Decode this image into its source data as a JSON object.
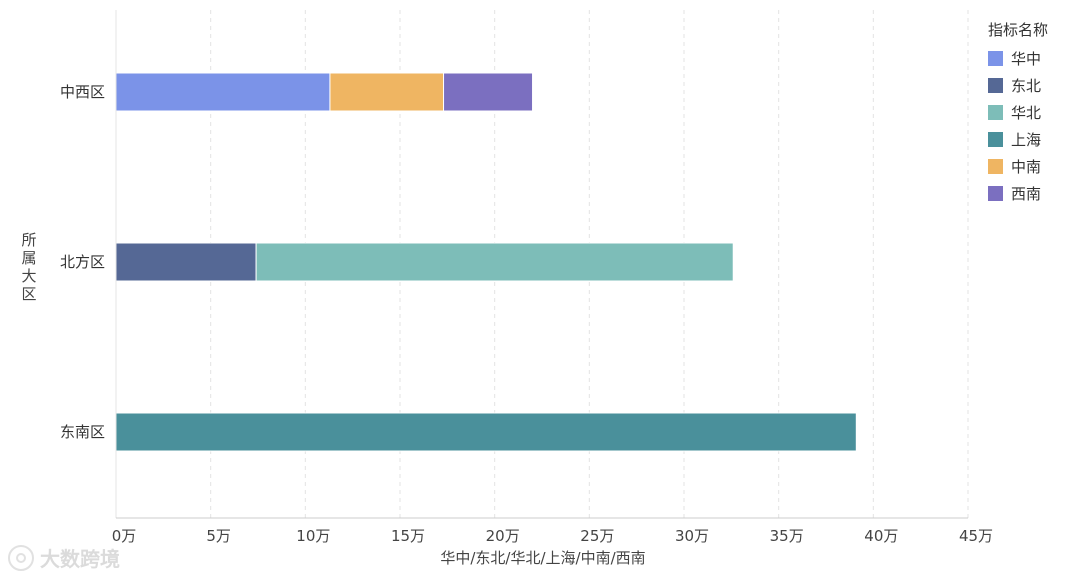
{
  "chart_data": {
    "type": "bar",
    "orientation": "horizontal",
    "stacked": true,
    "title": "",
    "ylabel": "所属大区",
    "xlabel": "华中/东北/华北/上海/中南/西南",
    "categories": [
      "中西区",
      "北方区",
      "东南区"
    ],
    "xlim": [
      0,
      450000
    ],
    "xticks": [
      0,
      50000,
      100000,
      150000,
      200000,
      250000,
      300000,
      350000,
      400000,
      450000
    ],
    "xtick_labels": [
      "0万",
      "5万",
      "10万",
      "15万",
      "20万",
      "25万",
      "30万",
      "35万",
      "40万",
      "45万"
    ],
    "grid": true,
    "legend_title": "指标名称",
    "legend_position": "right",
    "series": [
      {
        "name": "华中",
        "color": "#7b93e8",
        "values": [
          113000,
          0,
          0
        ]
      },
      {
        "name": "东北",
        "color": "#556895",
        "values": [
          0,
          74000,
          0
        ]
      },
      {
        "name": "华北",
        "color": "#7dbdb8",
        "values": [
          0,
          252000,
          0
        ]
      },
      {
        "name": "上海",
        "color": "#4a909b",
        "values": [
          0,
          0,
          391000
        ]
      },
      {
        "name": "中南",
        "color": "#efb562",
        "values": [
          60000,
          0,
          0
        ]
      },
      {
        "name": "西南",
        "color": "#7b6fc0",
        "values": [
          47000,
          0,
          0
        ]
      }
    ]
  },
  "watermark": {
    "text": "大数跨境"
  }
}
